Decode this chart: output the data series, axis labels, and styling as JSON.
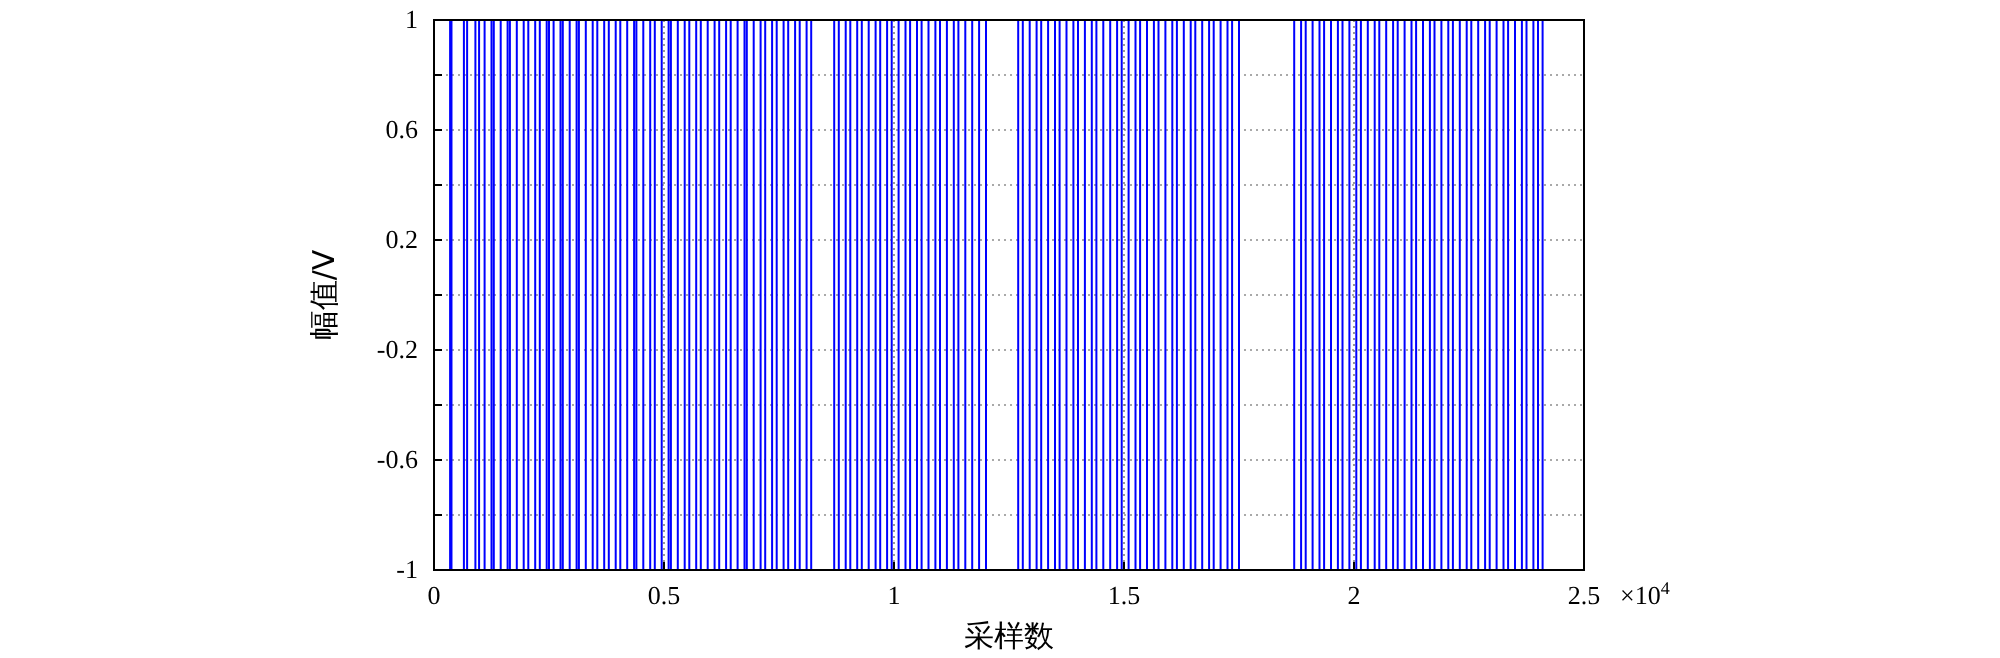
{
  "chart_data": {
    "type": "step",
    "xlabel": "采样数",
    "ylabel": "幅值/V",
    "annotations": [
      "×10$^{4}$"
    ],
    "xlim": [
      0,
      2.5
    ],
    "ylim": [
      -1,
      1
    ],
    "xticks": [
      0,
      0.5,
      1,
      1.5,
      2,
      2.5
    ],
    "yticks": [
      -1,
      {
        "value": -0.8,
        "label": null
      },
      -0.6,
      {
        "value": -0.4,
        "label": null
      },
      -0.2,
      {
        "value": 0,
        "label": null
      },
      0.2,
      {
        "value": 0.4,
        "label": null
      },
      0.6,
      {
        "value": 0.8,
        "label": null
      },
      1
    ],
    "grid": true,
    "marker": "none",
    "line_style": "solid",
    "series": [
      {
        "color": "#0000ff",
        "x": [
          0,
          0.035,
          0.038,
          0.065,
          0.072,
          0.09,
          0.098,
          0.11,
          0.125,
          0.13,
          0.145,
          0.16,
          0.165,
          0.18,
          0.195,
          0.205,
          0.22,
          0.23,
          0.245,
          0.25,
          0.26,
          0.275,
          0.28,
          0.295,
          0.31,
          0.315,
          0.33,
          0.345,
          0.355,
          0.37,
          0.38,
          0.395,
          0.405,
          0.42,
          0.435,
          0.44,
          0.455,
          0.47,
          0.48,
          0.495,
          0.51,
          0.515,
          0.53,
          0.545,
          0.555,
          0.57,
          0.58,
          0.595,
          0.61,
          0.62,
          0.635,
          0.645,
          0.66,
          0.675,
          0.68,
          0.695,
          0.71,
          0.72,
          0.735,
          0.745,
          0.76,
          0.77,
          0.785,
          0.795,
          0.81,
          0.82,
          0.87,
          0.88,
          0.895,
          0.905,
          0.92,
          0.93,
          0.945,
          0.96,
          0.97,
          0.985,
          0.995,
          1.01,
          1.025,
          1.035,
          1.05,
          1.06,
          1.075,
          1.09,
          1.1,
          1.115,
          1.13,
          1.14,
          1.155,
          1.17,
          1.185,
          1.2,
          1.27,
          1.28,
          1.295,
          1.31,
          1.32,
          1.335,
          1.35,
          1.36,
          1.375,
          1.39,
          1.4,
          1.415,
          1.43,
          1.44,
          1.455,
          1.47,
          1.485,
          1.495,
          1.51,
          1.525,
          1.535,
          1.55,
          1.565,
          1.575,
          1.59,
          1.605,
          1.615,
          1.63,
          1.645,
          1.655,
          1.67,
          1.685,
          1.695,
          1.71,
          1.725,
          1.735,
          1.75,
          1.87,
          1.885,
          1.895,
          1.91,
          1.925,
          1.935,
          1.95,
          1.965,
          1.975,
          1.99,
          2.005,
          2.015,
          2.03,
          2.045,
          2.055,
          2.07,
          2.085,
          2.095,
          2.11,
          2.125,
          2.135,
          2.15,
          2.165,
          2.175,
          2.19,
          2.205,
          2.215,
          2.23,
          2.245,
          2.255,
          2.27,
          2.285,
          2.295,
          2.31,
          2.325,
          2.335,
          2.35,
          2.365,
          2.375,
          2.39,
          2.4,
          2.41
        ],
        "values": [
          -1,
          1,
          -1,
          1,
          -1,
          1,
          -1,
          1,
          -1,
          1,
          -1,
          1,
          -1,
          1,
          -1,
          1,
          -1,
          1,
          -1,
          1,
          -1,
          1,
          -1,
          1,
          -1,
          1,
          -1,
          1,
          -1,
          1,
          -1,
          1,
          -1,
          1,
          -1,
          1,
          -1,
          1,
          -1,
          1,
          -1,
          1,
          -1,
          1,
          -1,
          1,
          -1,
          1,
          -1,
          1,
          -1,
          1,
          -1,
          1,
          -1,
          1,
          -1,
          1,
          -1,
          1,
          -1,
          1,
          -1,
          1,
          -1,
          1,
          -1,
          1,
          -1,
          1,
          -1,
          1,
          -1,
          1,
          -1,
          1,
          -1,
          1,
          -1,
          1,
          -1,
          1,
          -1,
          1,
          -1,
          1,
          -1,
          1,
          -1,
          1,
          -1,
          1,
          -1,
          1,
          -1,
          1,
          -1,
          1,
          -1,
          1,
          -1,
          1,
          -1,
          1,
          -1,
          1,
          -1,
          1,
          -1,
          1,
          -1,
          1,
          -1,
          1,
          -1,
          1,
          -1,
          1,
          -1,
          1,
          -1,
          1,
          -1,
          1,
          -1,
          1,
          -1,
          1,
          -1,
          1,
          -1,
          1,
          -1,
          1,
          -1,
          1,
          -1,
          1,
          -1,
          1,
          -1,
          1,
          -1,
          1,
          -1,
          1,
          -1,
          1,
          -1,
          1,
          -1,
          1,
          -1,
          1,
          -1,
          1,
          -1,
          1,
          -1,
          1,
          -1,
          1,
          -1,
          1,
          -1,
          1,
          -1,
          1,
          -1,
          1,
          -1
        ]
      }
    ]
  }
}
